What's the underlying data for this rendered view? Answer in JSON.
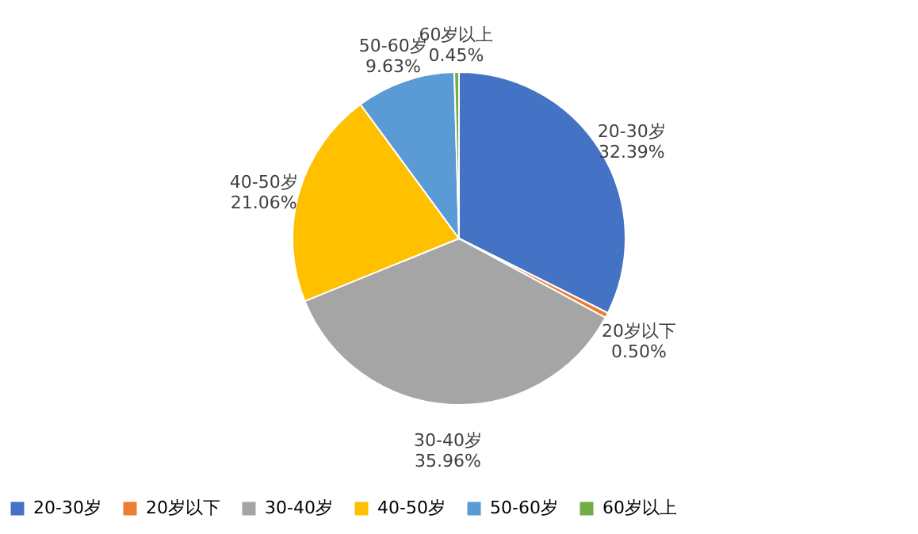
{
  "chart_data": {
    "type": "pie",
    "categories": [
      "20-30岁",
      "20岁以下",
      "30-40岁",
      "40-50岁",
      "50-60岁",
      "60岁以上"
    ],
    "values": [
      32.39,
      0.5,
      35.96,
      21.06,
      9.63,
      0.45
    ],
    "colors": [
      "#4472c4",
      "#ed7d31",
      "#a5a5a5",
      "#ffc000",
      "#5b9bd5",
      "#70ad47"
    ],
    "value_labels": [
      "32.39%",
      "0.50%",
      "35.96%",
      "21.06%",
      "9.63%",
      "0.45%"
    ],
    "legend": "bottom"
  }
}
